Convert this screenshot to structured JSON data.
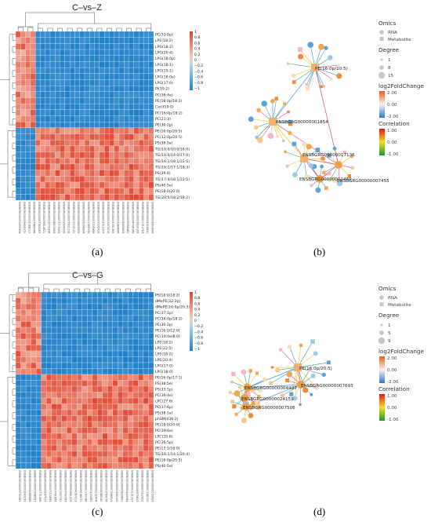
{
  "chart_data": [
    {
      "type": "heatmap",
      "panel_label": "(a)",
      "title": "C–vs–Z",
      "rows": [
        "PC(33:0p)",
        "LPE(18:2)",
        "LPG(18:2)",
        "LPG(20:4)",
        "LPG(18:0p)",
        "LPG(18:1)",
        "LPG(15:1)",
        "LPG(16:0e)",
        "LPG(17:0)",
        "PI(19:2)",
        "PC(36:4e)",
        "PE(18:0p/18:2)",
        "Cer(t19:0)",
        "PC(16:0p/18:2)",
        "PC(21:3)",
        "PE(36:2p)",
        "PE(16:0p/20:5)",
        "PC(12:0p/20:5)",
        "PS(38:5e)",
        "TG(16:0/10:0/16:0)",
        "TG(16:0/14:0/17:0)",
        "TG(16:1/18:1/22:5)",
        "TG(16:1/17:1/18:3)",
        "PS(39:4)",
        "TG(17:0/18:1/22:5)",
        "PS(40:5e)",
        "PE(18:0/20:0)",
        "TG(20:5/18:2/18:2)"
      ],
      "top_cluster_rows": 16,
      "left_cluster_cols": 4,
      "n_cols": 28,
      "colorbar": {
        "ticks": [
          "1",
          "0.8",
          "0.6",
          "0.4",
          "0.2",
          "0",
          "−0.2",
          "−0.4",
          "−0.6",
          "−0.8",
          "−1"
        ],
        "range": [
          -1,
          1
        ]
      }
    },
    {
      "type": "network",
      "panel_label": "(b)",
      "node_labels": [
        "PE(16:0p/20:5)",
        "ENSBGRG00000001854",
        "ENSBGRG00000017136",
        "ENSBGRG00000012469",
        "ENSBGRG00000007455"
      ],
      "legend": {
        "omics_title": "Omics",
        "omics": [
          "RNA",
          "Metabolite"
        ],
        "degree_title": "Degree",
        "degree": [
          "1",
          "8",
          "15"
        ],
        "lfc_title": "log2FoldChange",
        "lfc_ticks": [
          "2.00",
          "0.00",
          "-2.00"
        ],
        "corr_title": "Correlation",
        "corr_ticks": [
          "1.00",
          "0.00",
          "-1.00"
        ]
      }
    },
    {
      "type": "heatmap",
      "panel_label": "(c)",
      "title": "C–vs–G",
      "rows": [
        "PS(18:0/18:2)",
        "dMePE(32:2p)",
        "dMePE(16:0p/20:3)",
        "PC(37:1p)",
        "PC(16:0p/18:2)",
        "PE(36:2p)",
        "PE(16:0/12:0)",
        "PC(10:0e/8:0)",
        "LPE(18:2)",
        "LPE(22:5)",
        "LPE(18:2)",
        "LPE(20:4)",
        "LPG(17:0)",
        "LPG(18:0)",
        "PE(16:0p/17:1)",
        "PS(38:5e)",
        "PS(33:1p)",
        "PC(36:4e)",
        "LPC(27:6)",
        "PC(37:6p)",
        "PS(38:1e)",
        "phSM(d36:2)",
        "PE(18:0/20:0)",
        "PC(39:6e)",
        "LPC(35:6)",
        "PC(36:5p)",
        "PE(17:1/18:0)",
        "TG(16:1/14:1/20:4)",
        "PE(16:0p/20:5)",
        "PS(40:5e)"
      ],
      "top_cluster_rows": 14,
      "left_cluster_cols": 5,
      "n_cols": 27,
      "colorbar": {
        "ticks": [
          "1",
          "0.8",
          "0.6",
          "0.4",
          "0.2",
          "0",
          "−0.2",
          "−0.4",
          "−0.6",
          "−0.8",
          "−1"
        ],
        "range": [
          -1,
          1
        ]
      }
    },
    {
      "type": "network",
      "panel_label": "(d)",
      "node_labels": [
        "PE(16:0p/20:5)",
        "ENSBGRG00000004407",
        "ENSBGRG00000024159",
        "ENSBGRG00000007506",
        "ENSBGRG00000007693"
      ],
      "legend": {
        "omics_title": "Omics",
        "omics": [
          "RNA",
          "Metabolite"
        ],
        "degree_title": "Degree",
        "degree": [
          "1",
          "5",
          "9"
        ],
        "lfc_title": "log2FoldChange",
        "lfc_ticks": [
          "2.00",
          "0.00",
          "-2.00"
        ],
        "corr_title": "Correlation",
        "corr_ticks": [
          "1.00",
          "0.00",
          "-1.00"
        ]
      }
    }
  ]
}
